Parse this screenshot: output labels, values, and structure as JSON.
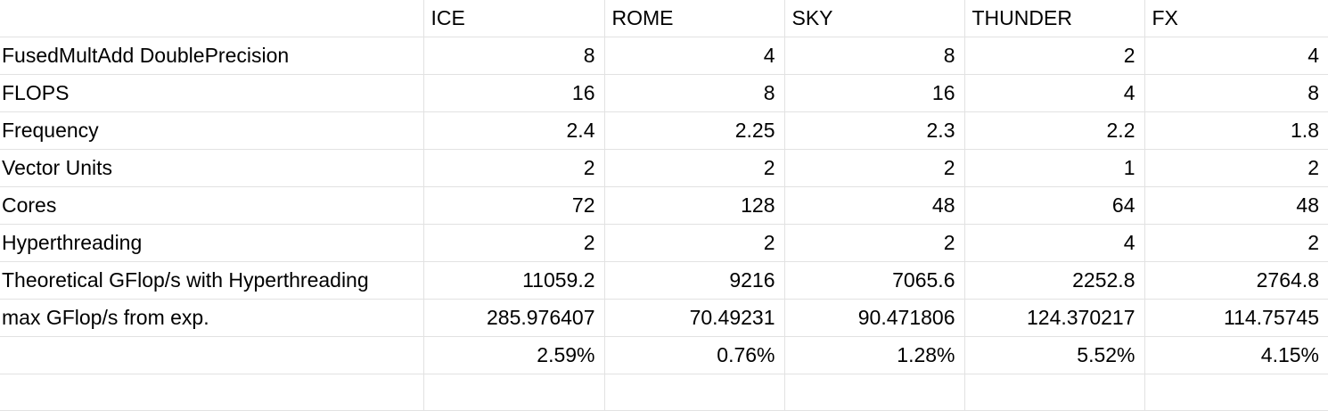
{
  "sheet": {
    "headers": [
      "",
      "ICE",
      "ROME",
      "SKY",
      "THUNDER",
      "FX"
    ],
    "rows": [
      {
        "label": "FusedMultAdd DoublePrecision",
        "values": [
          "8",
          "4",
          "8",
          "2",
          "4"
        ]
      },
      {
        "label": "FLOPS",
        "values": [
          "16",
          "8",
          "16",
          "4",
          "8"
        ]
      },
      {
        "label": "Frequency",
        "values": [
          "2.4",
          "2.25",
          "2.3",
          "2.2",
          "1.8"
        ]
      },
      {
        "label": "Vector Units",
        "values": [
          "2",
          "2",
          "2",
          "1",
          "2"
        ]
      },
      {
        "label": "Cores",
        "values": [
          "72",
          "128",
          "48",
          "64",
          "48"
        ]
      },
      {
        "label": "Hyperthreading",
        "values": [
          "2",
          "2",
          "2",
          "4",
          "2"
        ]
      },
      {
        "label": "Theoretical GFlop/s with Hyperthreading",
        "values": [
          "11059.2",
          "9216",
          "7065.6",
          "2252.8",
          "2764.8"
        ]
      },
      {
        "label": "max GFlop/s from exp.",
        "values": [
          "285.976407",
          "70.49231",
          "90.471806",
          "124.370217",
          "114.75745"
        ]
      },
      {
        "label": "",
        "values": [
          "2.59%",
          "0.76%",
          "1.28%",
          "5.52%",
          "4.15%"
        ]
      }
    ]
  }
}
